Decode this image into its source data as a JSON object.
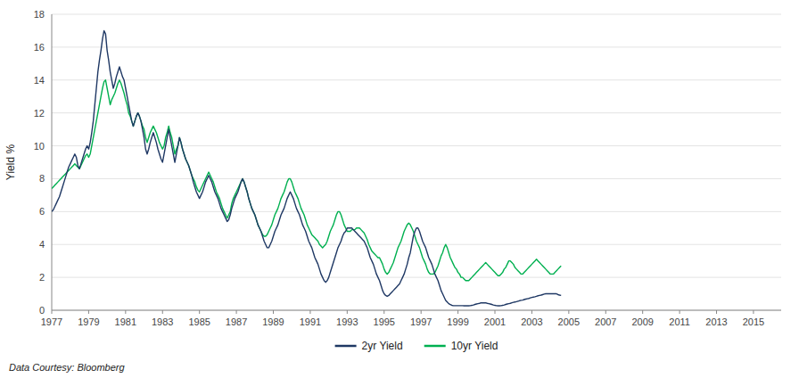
{
  "chart_data": {
    "type": "line",
    "ylabel": "Yield %",
    "annotations": [
      "Data Courtesy: Bloomberg"
    ],
    "xlim": [
      1977,
      2016.5
    ],
    "xticks": [
      1977,
      1979,
      1981,
      1983,
      1985,
      1987,
      1989,
      1991,
      1993,
      1995,
      1997,
      1999,
      2001,
      2003,
      2005,
      2007,
      2009,
      2011,
      2013,
      2015
    ],
    "ylim": [
      0,
      18
    ],
    "yticks": [
      0,
      2,
      4,
      6,
      8,
      10,
      12,
      14,
      16,
      18
    ],
    "grid": true,
    "legend": "bottom",
    "x": [
      1977,
      1977.0833,
      1977.1667,
      1977.25,
      1977.3333,
      1977.4167,
      1977.5,
      1977.5833,
      1977.6667,
      1977.75,
      1977.8333,
      1977.9167,
      1978,
      1978.0833,
      1978.1667,
      1978.25,
      1978.3333,
      1978.4167,
      1978.5,
      1978.5833,
      1978.6667,
      1978.75,
      1978.8333,
      1978.9167,
      1979,
      1979.0833,
      1979.1667,
      1979.25,
      1979.3333,
      1979.4167,
      1979.5,
      1979.5833,
      1979.6667,
      1979.75,
      1979.8333,
      1979.9167,
      1980,
      1980.0833,
      1980.1667,
      1980.25,
      1980.3333,
      1980.4167,
      1980.5,
      1980.5833,
      1980.6667,
      1980.75,
      1980.8333,
      1980.9167,
      1981,
      1981.0833,
      1981.1667,
      1981.25,
      1981.3333,
      1981.4167,
      1981.5,
      1981.5833,
      1981.6667,
      1981.75,
      1981.8333,
      1981.9167,
      1982,
      1982.0833,
      1982.1667,
      1982.25,
      1982.3333,
      1982.4167,
      1982.5,
      1982.5833,
      1982.6667,
      1982.75,
      1982.8333,
      1982.9167,
      1983,
      1983.0833,
      1983.1667,
      1983.25,
      1983.3333,
      1983.4167,
      1983.5,
      1983.5833,
      1983.6667,
      1983.75,
      1983.8333,
      1983.9167,
      1984,
      1984.0833,
      1984.1667,
      1984.25,
      1984.3333,
      1984.4167,
      1984.5,
      1984.5833,
      1984.6667,
      1984.75,
      1984.8333,
      1984.9167,
      1985,
      1985.0833,
      1985.1667,
      1985.25,
      1985.3333,
      1985.4167,
      1985.5,
      1985.5833,
      1985.6667,
      1985.75,
      1985.8333,
      1985.9167,
      1986,
      1986.0833,
      1986.1667,
      1986.25,
      1986.3333,
      1986.4167,
      1986.5,
      1986.5833,
      1986.6667,
      1986.75,
      1986.8333,
      1986.9167,
      1987,
      1987.0833,
      1987.1667,
      1987.25,
      1987.3333,
      1987.4167,
      1987.5,
      1987.5833,
      1987.6667,
      1987.75,
      1987.8333,
      1987.9167,
      1988,
      1988.0833,
      1988.1667,
      1988.25,
      1988.3333,
      1988.4167,
      1988.5,
      1988.5833,
      1988.6667,
      1988.75,
      1988.8333,
      1988.9167,
      1989,
      1989.0833,
      1989.1667,
      1989.25,
      1989.3333,
      1989.4167,
      1989.5,
      1989.5833,
      1989.6667,
      1989.75,
      1989.8333,
      1989.9167,
      1990,
      1990.0833,
      1990.1667,
      1990.25,
      1990.3333,
      1990.4167,
      1990.5,
      1990.5833,
      1990.6667,
      1990.75,
      1990.8333,
      1990.9167,
      1991,
      1991.0833,
      1991.1667,
      1991.25,
      1991.3333,
      1991.4167,
      1991.5,
      1991.5833,
      1991.6667,
      1991.75,
      1991.8333,
      1991.9167,
      1992,
      1992.0833,
      1992.1667,
      1992.25,
      1992.3333,
      1992.4167,
      1992.5,
      1992.5833,
      1992.6667,
      1992.75,
      1992.8333,
      1992.9167,
      1993,
      1993.0833,
      1993.1667,
      1993.25,
      1993.3333,
      1993.4167,
      1993.5,
      1993.5833,
      1993.6667,
      1993.75,
      1993.8333,
      1993.9167,
      1994,
      1994.0833,
      1994.1667,
      1994.25,
      1994.3333,
      1994.4167,
      1994.5,
      1994.5833,
      1994.6667,
      1994.75,
      1994.8333,
      1994.9167,
      1995,
      1995.0833,
      1995.1667,
      1995.25,
      1995.3333,
      1995.4167,
      1995.5,
      1995.5833,
      1995.6667,
      1995.75,
      1995.8333,
      1995.9167,
      1996,
      1996.0833,
      1996.1667,
      1996.25,
      1996.3333,
      1996.4167,
      1996.5,
      1996.5833,
      1996.6667,
      1996.75,
      1996.8333,
      1996.9167,
      1997,
      1997.0833,
      1997.1667,
      1997.25,
      1997.3333,
      1997.4167,
      1997.5,
      1997.5833,
      1997.6667,
      1997.75,
      1997.8333,
      1997.9167,
      1998,
      1998.0833,
      1998.1667,
      1998.25,
      1998.3333,
      1998.4167,
      1998.5,
      1998.5833,
      1998.6667,
      1998.75,
      1998.8333,
      1998.9167,
      1999,
      1999.0833,
      1999.1667,
      1999.25,
      1999.3333,
      1999.4167,
      1999.5,
      1999.5833,
      1999.6667,
      1999.75,
      1999.8333,
      1999.9167,
      2000,
      2000.0833,
      2000.1667,
      2000.25,
      2000.3333,
      2000.4167,
      2000.5,
      2000.5833,
      2000.6667,
      2000.75,
      2000.8333,
      2000.9167,
      2001,
      2001.0833,
      2001.1667,
      2001.25,
      2001.3333,
      2001.4167,
      2001.5,
      2001.5833,
      2001.6667,
      2001.75,
      2001.8333,
      2001.9167,
      2002,
      2002.0833,
      2002.1667,
      2002.25,
      2002.3333,
      2002.4167,
      2002.5,
      2002.5833,
      2002.6667,
      2002.75,
      2002.8333,
      2002.9167,
      2003,
      2003.0833,
      2003.1667,
      2003.25,
      2003.3333,
      2003.4167,
      2003.5,
      2003.5833,
      2003.6667,
      2003.75,
      2003.8333,
      2003.9167,
      2004,
      2004.0833,
      2004.1667,
      2004.25,
      2004.3333,
      2004.4167,
      2004.5,
      2004.5833
    ],
    "series": [
      {
        "name": "2yr Yield",
        "color": "#1f3864",
        "values": [
          6.0,
          6.1,
          6.3,
          6.5,
          6.7,
          6.9,
          7.2,
          7.5,
          7.8,
          8.1,
          8.4,
          8.7,
          8.9,
          9.1,
          9.3,
          9.5,
          9.3,
          8.8,
          8.6,
          8.9,
          9.2,
          9.5,
          9.8,
          10.0,
          9.8,
          10.2,
          10.8,
          11.5,
          12.5,
          13.5,
          14.5,
          15.2,
          15.8,
          16.5,
          17.0,
          16.8,
          15.8,
          15.2,
          14.5,
          14.0,
          13.5,
          13.8,
          14.2,
          14.5,
          14.8,
          14.5,
          14.2,
          14.0,
          13.5,
          13.0,
          12.5,
          12.0,
          11.5,
          11.2,
          11.5,
          11.8,
          12.0,
          11.8,
          11.5,
          11.0,
          10.5,
          9.8,
          9.5,
          9.8,
          10.2,
          10.5,
          10.8,
          10.5,
          10.2,
          9.8,
          9.5,
          9.2,
          9.0,
          9.5,
          10.0,
          10.5,
          11.0,
          10.5,
          10.0,
          9.5,
          9.0,
          9.5,
          10.0,
          10.5,
          10.2,
          9.8,
          9.5,
          9.2,
          9.0,
          8.8,
          8.5,
          8.2,
          7.8,
          7.5,
          7.2,
          7.0,
          6.8,
          7.0,
          7.2,
          7.5,
          7.8,
          8.0,
          8.2,
          8.0,
          7.8,
          7.5,
          7.2,
          7.0,
          6.8,
          6.5,
          6.2,
          6.0,
          5.8,
          5.6,
          5.4,
          5.5,
          5.8,
          6.2,
          6.5,
          6.8,
          7.0,
          7.2,
          7.5,
          7.8,
          8.0,
          7.8,
          7.5,
          7.2,
          6.8,
          6.5,
          6.2,
          6.0,
          5.8,
          5.5,
          5.2,
          5.0,
          4.8,
          4.5,
          4.2,
          4.0,
          3.8,
          3.8,
          4.0,
          4.2,
          4.5,
          4.8,
          5.0,
          5.2,
          5.5,
          5.8,
          6.0,
          6.2,
          6.5,
          6.8,
          7.0,
          7.2,
          7.0,
          6.8,
          6.5,
          6.2,
          6.0,
          5.8,
          5.5,
          5.2,
          5.0,
          4.8,
          4.5,
          4.2,
          4.0,
          3.8,
          3.5,
          3.2,
          3.0,
          2.8,
          2.5,
          2.2,
          2.0,
          1.8,
          1.7,
          1.8,
          2.0,
          2.3,
          2.6,
          2.9,
          3.2,
          3.5,
          3.8,
          4.0,
          4.2,
          4.5,
          4.7,
          4.8,
          5.0,
          5.0,
          5.0,
          5.0,
          4.9,
          4.8,
          4.7,
          4.6,
          4.5,
          4.4,
          4.3,
          4.2,
          4.0,
          3.8,
          3.5,
          3.2,
          3.0,
          2.8,
          2.5,
          2.2,
          2.0,
          1.8,
          1.5,
          1.2,
          1.0,
          0.9,
          0.85,
          0.9,
          1.0,
          1.1,
          1.2,
          1.3,
          1.4,
          1.5,
          1.6,
          1.8,
          2.0,
          2.2,
          2.5,
          2.8,
          3.2,
          3.5,
          4.0,
          4.5,
          4.8,
          5.0,
          5.0,
          4.8,
          4.5,
          4.2,
          4.0,
          3.8,
          3.5,
          3.2,
          3.0,
          2.8,
          2.5,
          2.2,
          2.0,
          1.8,
          1.5,
          1.2,
          1.0,
          0.8,
          0.6,
          0.5,
          0.4,
          0.35,
          0.3,
          0.28,
          0.28,
          0.28,
          0.28,
          0.28,
          0.28,
          0.28,
          0.27,
          0.27,
          0.27,
          0.27,
          0.28,
          0.3,
          0.32,
          0.35,
          0.38,
          0.4,
          0.42,
          0.45,
          0.45,
          0.45,
          0.45,
          0.42,
          0.4,
          0.38,
          0.35,
          0.32,
          0.3,
          0.28,
          0.27,
          0.27,
          0.28,
          0.3,
          0.32,
          0.35,
          0.38,
          0.4,
          0.42,
          0.45,
          0.48,
          0.5,
          0.52,
          0.55,
          0.58,
          0.6,
          0.62,
          0.65,
          0.68,
          0.7,
          0.72,
          0.75,
          0.78,
          0.8,
          0.82,
          0.85,
          0.88,
          0.9,
          0.92,
          0.95,
          0.98,
          1.0,
          1.0,
          1.0,
          1.0,
          1.0,
          1.0,
          1.0,
          1.0,
          0.95,
          0.92,
          0.9
        ]
      },
      {
        "name": "10yr Yield",
        "color": "#00b050",
        "values": [
          7.4,
          7.5,
          7.6,
          7.7,
          7.8,
          7.9,
          8.0,
          8.1,
          8.2,
          8.3,
          8.4,
          8.5,
          8.6,
          8.7,
          8.8,
          8.9,
          8.8,
          8.7,
          8.6,
          8.8,
          9.0,
          9.2,
          9.4,
          9.5,
          9.3,
          9.5,
          10.0,
          10.5,
          11.0,
          11.5,
          12.0,
          12.5,
          13.0,
          13.5,
          13.9,
          14.0,
          13.5,
          13.0,
          12.5,
          12.8,
          13.0,
          13.2,
          13.5,
          13.8,
          14.0,
          13.8,
          13.5,
          13.2,
          12.8,
          12.5,
          12.0,
          11.8,
          11.5,
          11.2,
          11.5,
          11.8,
          12.0,
          11.8,
          11.5,
          11.2,
          11.0,
          10.5,
          10.2,
          10.5,
          10.8,
          11.0,
          11.2,
          11.0,
          10.8,
          10.5,
          10.2,
          10.0,
          9.8,
          10.0,
          10.5,
          10.8,
          11.2,
          10.8,
          10.5,
          10.0,
          9.5,
          9.8,
          10.0,
          10.5,
          10.2,
          9.8,
          9.5,
          9.2,
          9.0,
          8.8,
          8.5,
          8.2,
          8.0,
          7.8,
          7.5,
          7.3,
          7.2,
          7.4,
          7.6,
          7.8,
          8.0,
          8.2,
          8.4,
          8.2,
          8.0,
          7.8,
          7.5,
          7.2,
          7.0,
          6.8,
          6.5,
          6.2,
          6.0,
          5.8,
          5.6,
          5.8,
          6.0,
          6.5,
          6.8,
          7.0,
          7.2,
          7.4,
          7.6,
          7.8,
          8.0,
          7.8,
          7.5,
          7.2,
          6.8,
          6.5,
          6.2,
          6.0,
          5.8,
          5.5,
          5.2,
          5.0,
          4.8,
          4.6,
          4.5,
          4.5,
          4.6,
          4.8,
          5.0,
          5.2,
          5.5,
          5.8,
          6.0,
          6.2,
          6.5,
          6.8,
          7.0,
          7.2,
          7.5,
          7.8,
          8.0,
          8.0,
          7.8,
          7.5,
          7.2,
          7.0,
          6.8,
          6.5,
          6.2,
          6.0,
          5.8,
          5.5,
          5.2,
          5.0,
          4.8,
          4.6,
          4.5,
          4.4,
          4.3,
          4.2,
          4.0,
          3.9,
          3.8,
          3.9,
          4.0,
          4.2,
          4.5,
          4.8,
          5.0,
          5.2,
          5.5,
          5.8,
          6.0,
          6.0,
          5.8,
          5.5,
          5.2,
          5.0,
          4.8,
          4.8,
          4.8,
          4.9,
          4.9,
          4.9,
          5.0,
          5.0,
          5.0,
          4.9,
          4.8,
          4.7,
          4.5,
          4.3,
          4.0,
          3.8,
          3.6,
          3.5,
          3.4,
          3.3,
          3.2,
          3.2,
          3.0,
          2.8,
          2.5,
          2.3,
          2.2,
          2.3,
          2.5,
          2.7,
          2.9,
          3.2,
          3.5,
          3.8,
          4.0,
          4.2,
          4.5,
          4.8,
          5.0,
          5.2,
          5.3,
          5.2,
          5.0,
          4.8,
          4.5,
          4.2,
          4.0,
          3.8,
          3.5,
          3.2,
          3.0,
          2.8,
          2.5,
          2.3,
          2.2,
          2.2,
          2.2,
          2.3,
          2.5,
          2.7,
          3.0,
          3.3,
          3.5,
          3.8,
          4.0,
          3.8,
          3.5,
          3.2,
          3.0,
          2.8,
          2.6,
          2.5,
          2.3,
          2.2,
          2.0,
          2.0,
          1.9,
          1.8,
          1.8,
          1.8,
          1.9,
          2.0,
          2.1,
          2.2,
          2.3,
          2.4,
          2.5,
          2.6,
          2.7,
          2.8,
          2.9,
          2.8,
          2.7,
          2.6,
          2.5,
          2.4,
          2.3,
          2.2,
          2.1,
          2.1,
          2.2,
          2.3,
          2.5,
          2.6,
          2.8,
          3.0,
          3.0,
          2.9,
          2.8,
          2.6,
          2.5,
          2.4,
          2.3,
          2.2,
          2.2,
          2.3,
          2.4,
          2.5,
          2.6,
          2.7,
          2.8,
          2.9,
          3.0,
          3.1,
          3.0,
          2.9,
          2.8,
          2.7,
          2.6,
          2.5,
          2.4,
          2.3,
          2.2,
          2.2,
          2.2,
          2.3,
          2.4,
          2.5,
          2.6,
          2.7
        ]
      }
    ]
  }
}
